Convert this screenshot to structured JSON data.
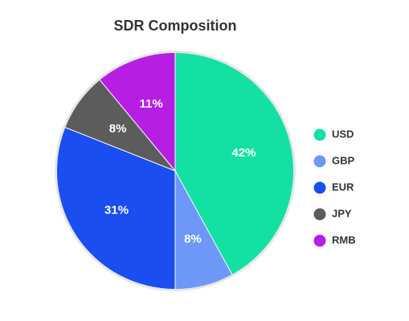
{
  "chart_data": {
    "type": "pie",
    "title": "SDR Composition",
    "slices": [
      {
        "label": "USD",
        "value": 42,
        "display": "42%",
        "color": "#15e0a4"
      },
      {
        "label": "GBP",
        "value": 8,
        "display": "8%",
        "color": "#6d98f8"
      },
      {
        "label": "EUR",
        "value": 31,
        "display": "31%",
        "color": "#1a4ef0"
      },
      {
        "label": "JPY",
        "value": 8,
        "display": "8%",
        "color": "#5c5c5c"
      },
      {
        "label": "RMB",
        "value": 11,
        "display": "11%",
        "color": "#b61fe3"
      }
    ],
    "legend_position": "right"
  }
}
